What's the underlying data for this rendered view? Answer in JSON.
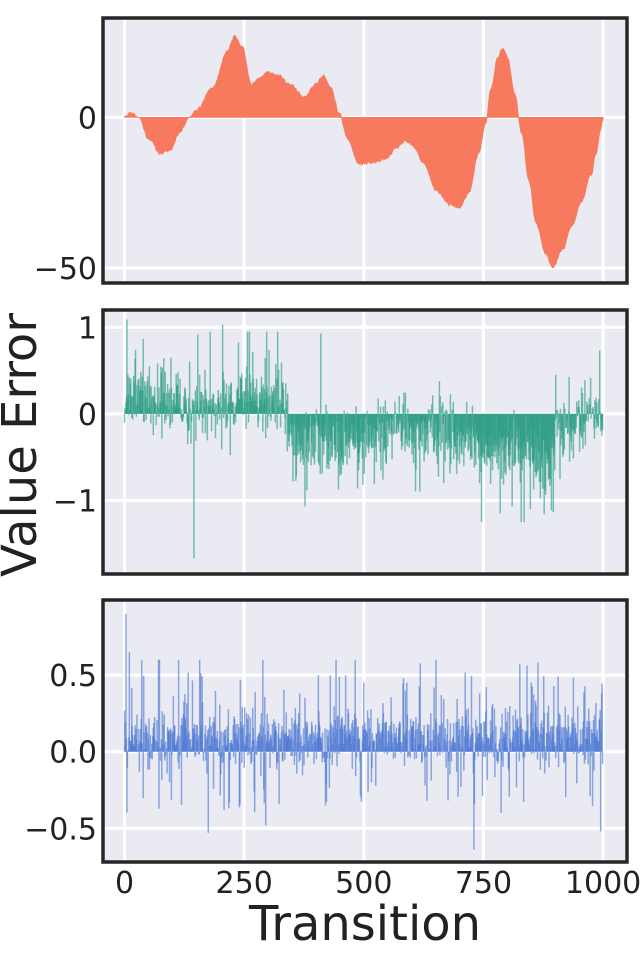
{
  "chart_data": {
    "type": "area",
    "shared": {
      "xlabel": "Transition",
      "ylabel": "Value Error",
      "xlim": [
        -45,
        1050
      ],
      "x_ticks": [
        0,
        250,
        500,
        750,
        1000
      ],
      "x_tick_labels": [
        "0",
        "250",
        "500",
        "750",
        "1000"
      ],
      "grid": true,
      "n_transitions": 1000
    },
    "panels": [
      {
        "kind": "area",
        "color": "#f77a5e",
        "ylim": [
          -55,
          33
        ],
        "y_ticks": [
          0,
          -50
        ],
        "y_tick_labels": [
          "0",
          "−50"
        ],
        "keypoints": [
          [
            0,
            0.5
          ],
          [
            15,
            1.6
          ],
          [
            30,
            0
          ],
          [
            50,
            -7
          ],
          [
            75,
            -12
          ],
          [
            95,
            -11
          ],
          [
            115,
            -5
          ],
          [
            135,
            0
          ],
          [
            150,
            2.5
          ],
          [
            185,
            10
          ],
          [
            215,
            22
          ],
          [
            230,
            27
          ],
          [
            245,
            24
          ],
          [
            265,
            11
          ],
          [
            280,
            13
          ],
          [
            300,
            15
          ],
          [
            320,
            14
          ],
          [
            345,
            11
          ],
          [
            375,
            7
          ],
          [
            400,
            11
          ],
          [
            415,
            14
          ],
          [
            430,
            10
          ],
          [
            450,
            1
          ],
          [
            465,
            -7
          ],
          [
            490,
            -15.5
          ],
          [
            520,
            -15
          ],
          [
            545,
            -14
          ],
          [
            570,
            -10
          ],
          [
            585,
            -8
          ],
          [
            600,
            -9
          ],
          [
            625,
            -15
          ],
          [
            650,
            -24
          ],
          [
            680,
            -29
          ],
          [
            700,
            -30
          ],
          [
            720,
            -25
          ],
          [
            740,
            -12
          ],
          [
            755,
            -2
          ],
          [
            765,
            9
          ],
          [
            780,
            20
          ],
          [
            790,
            23
          ],
          [
            800,
            20
          ],
          [
            815,
            8
          ],
          [
            830,
            -5
          ],
          [
            845,
            -21
          ],
          [
            860,
            -35
          ],
          [
            880,
            -45
          ],
          [
            895,
            -50
          ],
          [
            915,
            -44
          ],
          [
            935,
            -36
          ],
          [
            955,
            -28
          ],
          [
            975,
            -19
          ],
          [
            985,
            -12
          ],
          [
            995,
            -4
          ],
          [
            1000,
            -0.5
          ]
        ]
      },
      {
        "kind": "spikes",
        "color": "#2a9d83",
        "ylim": [
          -1.85,
          1.2
        ],
        "y_ticks": [
          1,
          0,
          -1
        ],
        "y_tick_labels": [
          "1",
          "0",
          "−1"
        ],
        "notable_values": [
          [
            5,
            1.09
          ],
          [
            145,
            -1.67
          ],
          [
            205,
            1.03
          ],
          [
            410,
            0.93
          ],
          [
            785,
            -1.15
          ],
          [
            810,
            -1.07
          ]
        ]
      },
      {
        "kind": "spikes",
        "color": "#4c78d4",
        "ylim": [
          -0.72,
          0.99
        ],
        "y_ticks": [
          0.5,
          0.0,
          -0.5
        ],
        "y_tick_labels": [
          "0.5",
          "0.0",
          "−0.5"
        ],
        "notable_values": [
          [
            3,
            0.9
          ],
          [
            10,
            0.65
          ],
          [
            175,
            -0.53
          ],
          [
            295,
            -0.48
          ],
          [
            730,
            -0.64
          ],
          [
            995,
            -0.52
          ],
          [
            590,
            0.45
          ],
          [
            405,
            0.5
          ]
        ]
      }
    ]
  }
}
